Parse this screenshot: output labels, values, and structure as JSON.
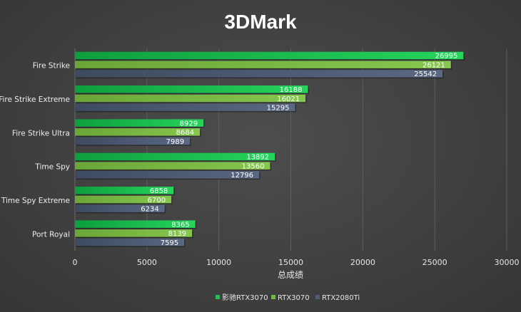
{
  "chart_data": {
    "type": "bar",
    "orientation": "horizontal",
    "title": "3DMark",
    "xlabel": "总成绩",
    "ylabel": "",
    "categories": [
      "Fire Strike",
      "Fire Strike Extreme",
      "Fire Strike Ultra",
      "Time Spy",
      "Time Spy Extreme",
      "Port Royal"
    ],
    "series": [
      {
        "name": "影驰RTX3070",
        "color": "#1fbf55",
        "values": [
          26995,
          16188,
          8929,
          13892,
          6858,
          8365
        ]
      },
      {
        "name": "RTX3070",
        "color": "#77b843",
        "values": [
          26121,
          16021,
          8684,
          13560,
          6700,
          8139
        ]
      },
      {
        "name": "RTX2080Ti",
        "color": "#4e5b73",
        "values": [
          25542,
          15295,
          7989,
          12796,
          6234,
          7595
        ]
      }
    ],
    "xlim": [
      0,
      30000
    ],
    "xticks": [
      "0",
      "5000",
      "10000",
      "15000",
      "20000",
      "25000",
      "30000"
    ],
    "grid": true,
    "legend_position": "bottom",
    "data_labels": true
  }
}
